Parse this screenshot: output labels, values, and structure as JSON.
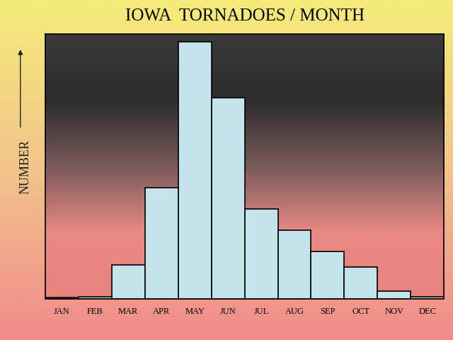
{
  "chart_data": {
    "type": "bar",
    "title": "IOWA  TORNADOES / MONTH",
    "y_label": "NUMBER",
    "categories": [
      "JAN",
      "FEB",
      "MAR",
      "APR",
      "MAY",
      "JUN",
      "JUL",
      "AUG",
      "SEP",
      "OCT",
      "NOV",
      "DEC"
    ],
    "values": [
      0.6,
      1,
      13,
      42,
      97,
      76,
      34,
      26,
      18,
      12,
      3,
      1
    ],
    "color": "#c4e4ec",
    "ylim": [
      0,
      100
    ],
    "tick_labels": "x",
    "grid": false
  }
}
